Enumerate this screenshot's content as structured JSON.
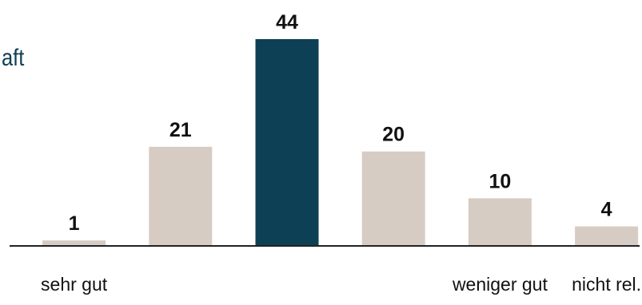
{
  "chart_data": {
    "type": "bar",
    "title": "aft",
    "categories": [
      "sehr gut",
      "",
      "",
      "",
      "weniger gut",
      "nicht rel."
    ],
    "values": [
      1,
      21,
      44,
      20,
      10,
      4
    ],
    "data_labels": [
      "1",
      "21",
      "44",
      "20",
      "10",
      "4"
    ],
    "highlight_index": 2,
    "colors": {
      "bar": "#d6ccc4",
      "highlight": "#0d4054",
      "text": "#111111",
      "axis": "#222222"
    },
    "grid": false,
    "legend": "none",
    "ylim": [
      0,
      44
    ]
  }
}
